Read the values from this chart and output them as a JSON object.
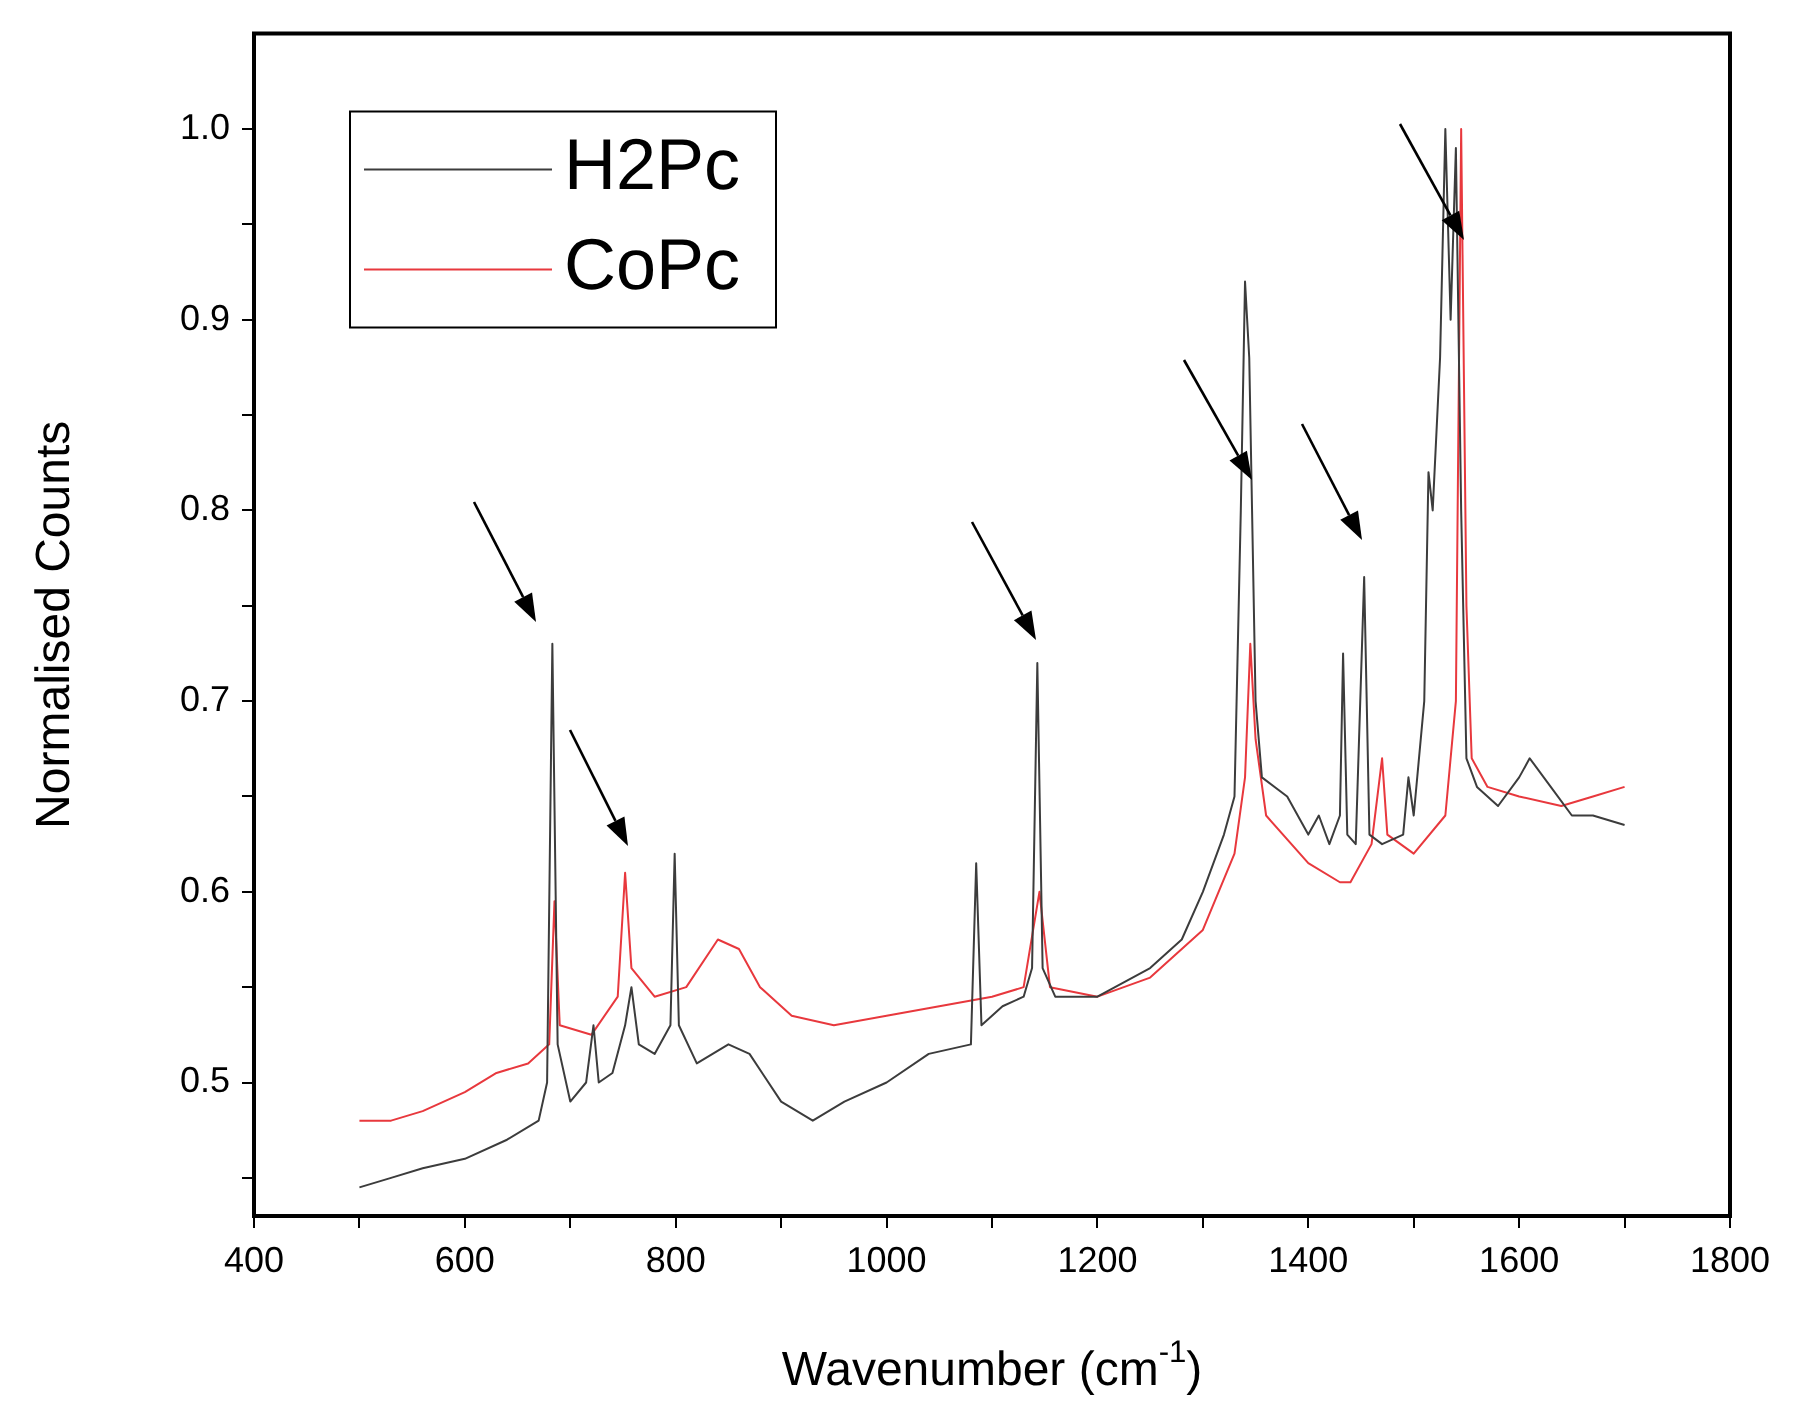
{
  "chart_data": {
    "type": "line",
    "xlabel": "Wavenumber (cm$^{-1}$)",
    "ylabel": "Normalised Counts",
    "xlim": [
      400,
      1800
    ],
    "xticks": [
      400,
      {
        "value": 500,
        "label": null
      },
      600,
      {
        "value": 700,
        "label": null
      },
      800,
      {
        "value": 900,
        "label": null
      },
      1000,
      {
        "value": 1100,
        "label": null
      },
      1200,
      {
        "value": 1300,
        "label": null
      },
      1400,
      {
        "value": 1500,
        "label": null
      },
      1600,
      {
        "value": 1700,
        "label": null
      },
      1800
    ],
    "ylim": [
      0.43,
      1.05
    ],
    "yticks": [
      {
        "value": 0.45,
        "label": null
      },
      {
        "value": 0.5,
        "label": "0.5"
      },
      {
        "value": 0.55,
        "label": null
      },
      {
        "value": 0.6,
        "label": "0.6"
      },
      {
        "value": 0.65,
        "label": null
      },
      {
        "value": 0.7,
        "label": "0.7"
      },
      {
        "value": 0.75,
        "label": null
      },
      {
        "value": 0.8,
        "label": "0.8"
      },
      {
        "value": 0.85,
        "label": null
      },
      {
        "value": 0.9,
        "label": "0.9"
      },
      {
        "value": 0.95,
        "label": null
      },
      {
        "value": 1.0,
        "label": "1.0"
      }
    ],
    "grid": false,
    "legend": "top left",
    "marker": "none",
    "line_style": "solid",
    "series": [
      {
        "name": "H2Pc",
        "color": "#3c3c3c",
        "x": [
          500,
          530,
          560,
          600,
          640,
          670,
          678,
          683,
          688,
          700,
          715,
          722,
          727,
          740,
          752,
          758,
          765,
          780,
          795,
          799,
          803,
          820,
          850,
          870,
          900,
          930,
          960,
          1000,
          1040,
          1080,
          1085,
          1090,
          1110,
          1130,
          1138,
          1143,
          1148,
          1160,
          1200,
          1250,
          1280,
          1300,
          1320,
          1330,
          1336,
          1340,
          1344,
          1350,
          1356,
          1380,
          1400,
          1410,
          1420,
          1430,
          1433,
          1437,
          1445,
          1453,
          1458,
          1470,
          1490,
          1495,
          1500,
          1510,
          1514,
          1518,
          1525,
          1530,
          1535,
          1540,
          1545,
          1550,
          1560,
          1580,
          1600,
          1610,
          1630,
          1650,
          1670,
          1700
        ],
        "values": [
          0.445,
          0.45,
          0.455,
          0.46,
          0.47,
          0.48,
          0.5,
          0.73,
          0.52,
          0.49,
          0.5,
          0.53,
          0.5,
          0.505,
          0.53,
          0.55,
          0.52,
          0.515,
          0.53,
          0.62,
          0.53,
          0.51,
          0.52,
          0.515,
          0.49,
          0.48,
          0.49,
          0.5,
          0.515,
          0.52,
          0.615,
          0.53,
          0.54,
          0.545,
          0.56,
          0.72,
          0.56,
          0.545,
          0.545,
          0.56,
          0.575,
          0.6,
          0.63,
          0.65,
          0.8,
          0.92,
          0.88,
          0.7,
          0.66,
          0.65,
          0.63,
          0.64,
          0.625,
          0.64,
          0.725,
          0.63,
          0.625,
          0.765,
          0.63,
          0.625,
          0.63,
          0.66,
          0.64,
          0.7,
          0.82,
          0.8,
          0.88,
          1.0,
          0.9,
          0.99,
          0.8,
          0.67,
          0.655,
          0.645,
          0.66,
          0.67,
          0.655,
          0.64,
          0.64,
          0.635
        ]
      },
      {
        "name": "CoPc",
        "color": "#e8383d",
        "x": [
          500,
          530,
          560,
          600,
          630,
          660,
          680,
          685,
          690,
          720,
          745,
          752,
          758,
          780,
          810,
          840,
          860,
          880,
          910,
          950,
          1000,
          1050,
          1100,
          1130,
          1145,
          1155,
          1200,
          1250,
          1300,
          1330,
          1340,
          1345,
          1350,
          1360,
          1400,
          1430,
          1440,
          1460,
          1470,
          1475,
          1500,
          1530,
          1540,
          1545,
          1550,
          1555,
          1570,
          1600,
          1640,
          1670,
          1700
        ],
        "values": [
          0.48,
          0.48,
          0.485,
          0.495,
          0.505,
          0.51,
          0.52,
          0.595,
          0.53,
          0.525,
          0.545,
          0.61,
          0.56,
          0.545,
          0.55,
          0.575,
          0.57,
          0.55,
          0.535,
          0.53,
          0.535,
          0.54,
          0.545,
          0.55,
          0.6,
          0.55,
          0.545,
          0.555,
          0.58,
          0.62,
          0.66,
          0.73,
          0.68,
          0.64,
          0.615,
          0.605,
          0.605,
          0.625,
          0.67,
          0.63,
          0.62,
          0.64,
          0.7,
          1.0,
          0.75,
          0.67,
          0.655,
          0.65,
          0.645,
          0.65,
          0.655
        ]
      }
    ]
  }
}
